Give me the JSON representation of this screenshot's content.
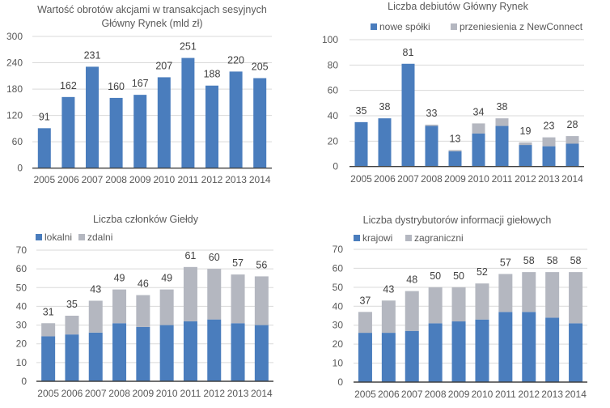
{
  "colors": {
    "primary": "#4a7dbd",
    "secondary": "#b4b7c0"
  },
  "chart_data": [
    {
      "id": "turnover",
      "type": "bar",
      "title": [
        "Wartość obrotów akcjami w transakcjach sesyjnych",
        "Główny Rynek (mld zł)"
      ],
      "categories": [
        "2005",
        "2006",
        "2007",
        "2008",
        "2009",
        "2010",
        "2011",
        "2012",
        "2013",
        "2014"
      ],
      "series": [
        {
          "name": "",
          "values": [
            91,
            162,
            231,
            160,
            167,
            207,
            251,
            188,
            220,
            205
          ]
        }
      ],
      "data_labels": [
        "91",
        "162",
        "231",
        "160",
        "167",
        "207",
        "251",
        "188",
        "220",
        "205"
      ],
      "yticks": [
        "0",
        "60",
        "120",
        "180",
        "240",
        "300"
      ],
      "ylim": [
        0,
        300
      ],
      "grid": true,
      "legend": "none"
    },
    {
      "id": "debuts",
      "type": "bar",
      "stacked": true,
      "title": [
        "Liczba debiutów Główny Rynek"
      ],
      "categories": [
        "2005",
        "2006",
        "2007",
        "2008",
        "2009",
        "2010",
        "2011",
        "2012",
        "2013",
        "2014"
      ],
      "series": [
        {
          "name": "nowe spółki",
          "values": [
            35,
            38,
            81,
            32,
            12,
            26,
            32,
            17,
            16,
            18
          ]
        },
        {
          "name": "przeniesienia z NewConnect",
          "values": [
            0,
            0,
            0,
            1,
            1,
            8,
            6,
            2,
            7,
            6
          ]
        }
      ],
      "data_labels": [
        "35",
        "38",
        "81",
        "33",
        "13",
        "34",
        "38",
        "19",
        "23",
        "28"
      ],
      "yticks": [
        "0",
        "20",
        "40",
        "60",
        "80",
        "100"
      ],
      "ylim": [
        0,
        100
      ],
      "grid": true,
      "legend": "top"
    },
    {
      "id": "members",
      "type": "bar",
      "stacked": true,
      "title": [
        "Liczba członków Giełdy"
      ],
      "categories": [
        "2005",
        "2006",
        "2007",
        "2008",
        "2009",
        "2010",
        "2011",
        "2012",
        "2013",
        "2014"
      ],
      "series": [
        {
          "name": "lokalni",
          "values": [
            24,
            25,
            26,
            31,
            29,
            30,
            32,
            33,
            31,
            30
          ]
        },
        {
          "name": "zdalni",
          "values": [
            7,
            10,
            17,
            18,
            17,
            19,
            29,
            27,
            26,
            26
          ]
        }
      ],
      "data_labels": [
        "31",
        "35",
        "43",
        "49",
        "46",
        "49",
        "61",
        "60",
        "57",
        "56"
      ],
      "yticks": [
        "0",
        "10",
        "20",
        "30",
        "40",
        "50",
        "60",
        "70"
      ],
      "ylim": [
        0,
        70
      ],
      "grid": true,
      "legend": "top-left"
    },
    {
      "id": "distributors",
      "type": "bar",
      "stacked": true,
      "title": [
        "Liczba dystrybutorów informacji giełowych"
      ],
      "categories": [
        "2005",
        "2006",
        "2007",
        "2008",
        "2009",
        "2010",
        "2011",
        "2012",
        "2013",
        "2014"
      ],
      "series": [
        {
          "name": "krajowi",
          "values": [
            26,
            26,
            27,
            31,
            32,
            33,
            37,
            37,
            34,
            31
          ]
        },
        {
          "name": "zagraniczni",
          "values": [
            11,
            17,
            21,
            19,
            18,
            19,
            20,
            21,
            24,
            27
          ]
        }
      ],
      "data_labels": [
        "37",
        "43",
        "48",
        "50",
        "50",
        "52",
        "57",
        "58",
        "58",
        "58"
      ],
      "yticks": [
        "0",
        "10",
        "20",
        "30",
        "40",
        "50",
        "60",
        "70"
      ],
      "ylim": [
        0,
        70
      ],
      "grid": true,
      "legend": "top-left"
    }
  ]
}
